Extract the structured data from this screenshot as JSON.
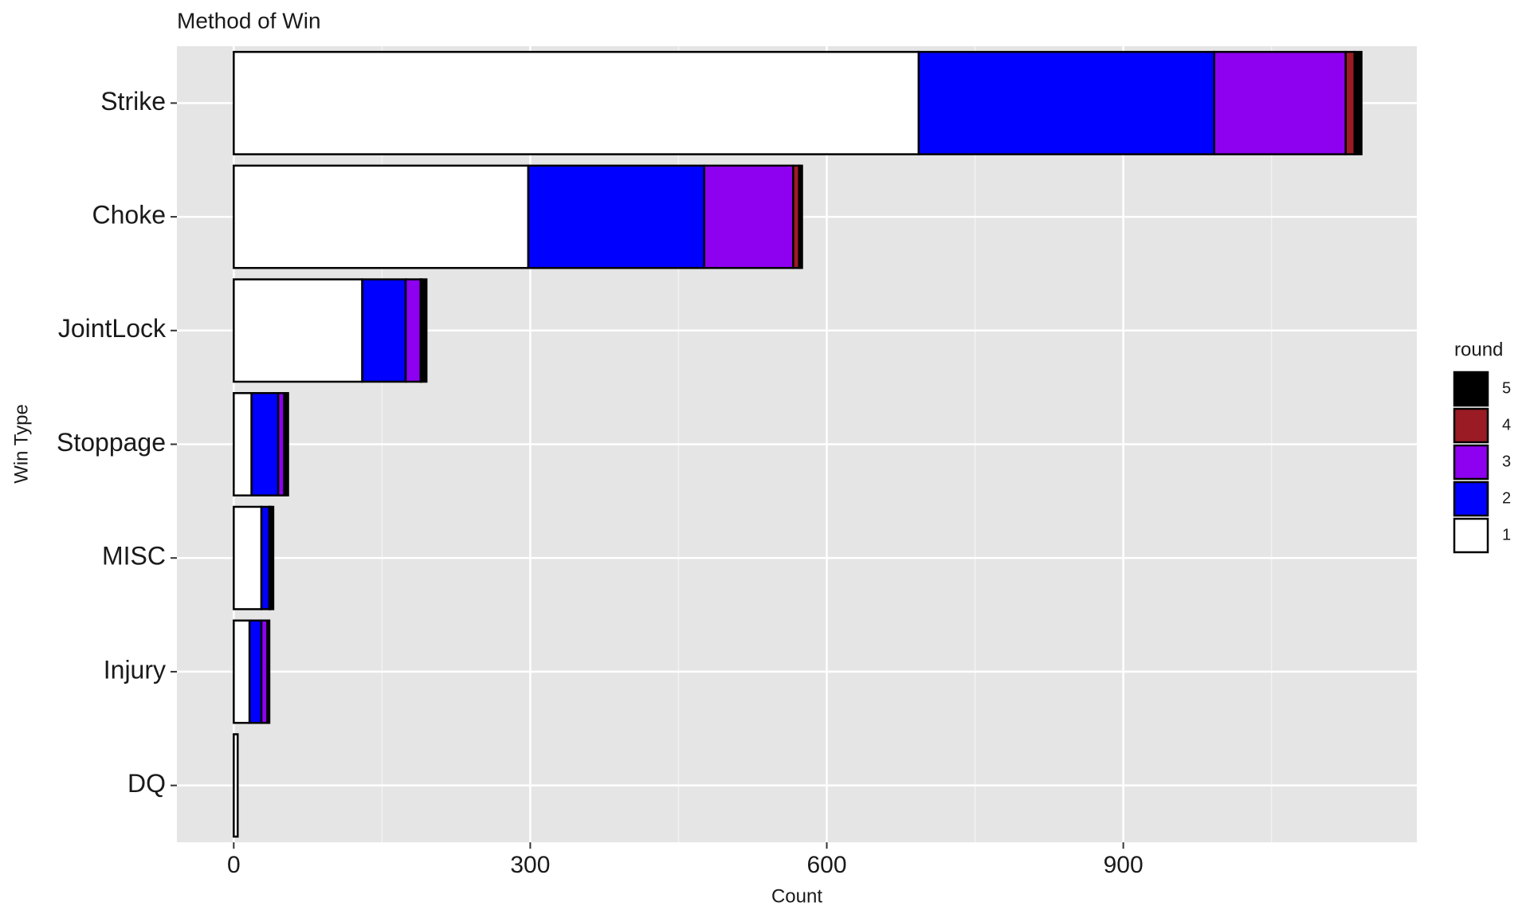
{
  "chart_data": {
    "type": "stacked-barh",
    "title": "Method of Win",
    "x_label": "Count",
    "y_label": "Win Type",
    "categories": [
      "Strike",
      "Choke",
      "JointLock",
      "Stoppage",
      "MISC",
      "Injury",
      "DQ"
    ],
    "legend_title": "round",
    "series": [
      {
        "name": "1",
        "color": "#ffffff",
        "values": [
          693,
          298,
          130,
          18,
          28,
          16,
          4
        ]
      },
      {
        "name": "2",
        "color": "#0000ff",
        "values": [
          299,
          178,
          44,
          27,
          8,
          12,
          0
        ]
      },
      {
        "name": "3",
        "color": "#8e00f0",
        "values": [
          133,
          90,
          15,
          6,
          1,
          6,
          0
        ]
      },
      {
        "name": "4",
        "color": "#9b1b24",
        "values": [
          9,
          6,
          1,
          1,
          0,
          2,
          0
        ]
      },
      {
        "name": "5",
        "color": "#000000",
        "values": [
          7,
          3,
          5,
          3,
          3,
          0,
          0
        ]
      }
    ],
    "xlim": [
      -57.5,
      1197
    ],
    "xticks": [
      0,
      300,
      600,
      900
    ],
    "grid": true
  }
}
